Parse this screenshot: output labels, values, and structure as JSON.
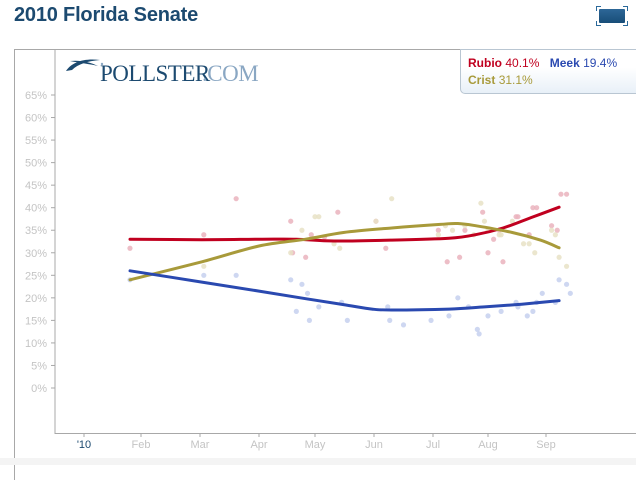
{
  "header": {
    "title": "2010 Florida Senate",
    "toggle_icon": "expand-icon"
  },
  "logo": {
    "text_main": "POLLSTER",
    "text_suffix": ".COM",
    "icon": "pollster-swoosh-icon"
  },
  "legend": {
    "entries": [
      {
        "name": "Rubio",
        "value": "40.1%",
        "color": "#c0001f"
      },
      {
        "name": "Meek",
        "value": "19.4%",
        "color": "#2a49b0"
      },
      {
        "name": "Crist",
        "value": "31.1%",
        "color": "#a89a3a"
      }
    ]
  },
  "chart_data": {
    "type": "line",
    "title": "2010 Florida Senate",
    "xlabel": "",
    "ylabel": "",
    "ylim": [
      0,
      65
    ],
    "yticks": [
      "65%",
      "60%",
      "55%",
      "50%",
      "45%",
      "40%",
      "35%",
      "30%",
      "25%",
      "20%",
      "15%",
      "10%",
      "5%",
      "0%"
    ],
    "ytick_values": [
      65,
      60,
      55,
      50,
      45,
      40,
      35,
      30,
      25,
      20,
      15,
      10,
      5,
      0
    ],
    "xticks": [
      {
        "label": "'10",
        "day": 0,
        "highlight": true
      },
      {
        "label": "Feb",
        "day": 31
      },
      {
        "label": "Mar",
        "day": 59
      },
      {
        "label": "Apr",
        "day": 90
      },
      {
        "label": "May",
        "day": 120
      },
      {
        "label": "Jun",
        "day": 151
      },
      {
        "label": "Jul",
        "day": 181
      },
      {
        "label": "Aug",
        "day": 212
      },
      {
        "label": "Sep",
        "day": 243
      }
    ],
    "x_unit": "day of year 2010",
    "xlim": [
      -16,
      285
    ],
    "grid": false,
    "legend_position": "top-right",
    "series": [
      {
        "name": "Rubio",
        "color": "#c0001f",
        "dot_color": "#eab3bd",
        "final_value": 40.1,
        "trend": [
          [
            25,
            33.0
          ],
          [
            60,
            32.9
          ],
          [
            90,
            33.0
          ],
          [
            110,
            33.0
          ],
          [
            130,
            32.6
          ],
          [
            160,
            32.8
          ],
          [
            190,
            33.2
          ],
          [
            205,
            34.0
          ],
          [
            220,
            35.5
          ],
          [
            235,
            37.8
          ],
          [
            250,
            40.1
          ]
        ],
        "polls": [
          [
            25,
            31
          ],
          [
            61,
            34
          ],
          [
            78,
            42
          ],
          [
            107,
            37
          ],
          [
            108,
            30
          ],
          [
            115,
            29
          ],
          [
            118,
            34
          ],
          [
            125,
            33.5
          ],
          [
            132,
            39
          ],
          [
            152,
            37
          ],
          [
            157,
            31
          ],
          [
            184,
            35
          ],
          [
            189,
            28
          ],
          [
            196,
            29
          ],
          [
            199,
            35
          ],
          [
            209,
            39
          ],
          [
            212,
            30
          ],
          [
            215,
            33
          ],
          [
            218,
            35
          ],
          [
            220,
            28
          ],
          [
            227,
            38
          ],
          [
            228,
            38
          ],
          [
            234,
            34
          ],
          [
            236,
            40
          ],
          [
            238,
            40
          ],
          [
            246,
            36
          ],
          [
            249,
            35
          ],
          [
            251,
            43
          ],
          [
            254,
            43
          ]
        ]
      },
      {
        "name": "Crist",
        "color": "#a89a3a",
        "dot_color": "#e7e2c6",
        "final_value": 31.1,
        "trend": [
          [
            25,
            24.0
          ],
          [
            60,
            28.0
          ],
          [
            90,
            31.5
          ],
          [
            115,
            33.0
          ],
          [
            135,
            34.5
          ],
          [
            160,
            35.5
          ],
          [
            185,
            36.3
          ],
          [
            195,
            36.5
          ],
          [
            205,
            36.0
          ],
          [
            225,
            34.5
          ],
          [
            240,
            32.8
          ],
          [
            250,
            31.1
          ]
        ],
        "polls": [
          [
            61,
            27
          ],
          [
            107,
            30
          ],
          [
            113,
            35
          ],
          [
            120,
            38
          ],
          [
            122,
            38
          ],
          [
            130,
            32
          ],
          [
            133,
            31
          ],
          [
            152,
            37
          ],
          [
            160,
            42
          ],
          [
            184,
            34
          ],
          [
            188,
            36
          ],
          [
            192,
            35
          ],
          [
            199,
            36
          ],
          [
            204,
            34
          ],
          [
            208,
            41
          ],
          [
            210,
            37
          ],
          [
            212,
            35
          ],
          [
            218,
            34
          ],
          [
            219,
            34
          ],
          [
            225,
            37
          ],
          [
            231,
            32
          ],
          [
            234,
            32
          ],
          [
            237,
            30
          ],
          [
            246,
            35
          ],
          [
            248,
            34
          ],
          [
            250,
            29
          ],
          [
            254,
            27
          ]
        ]
      },
      {
        "name": "Meek",
        "color": "#2a49b0",
        "dot_color": "#c6d0ee",
        "final_value": 19.4,
        "trend": [
          [
            25,
            26.0
          ],
          [
            60,
            23.5
          ],
          [
            90,
            21.5
          ],
          [
            115,
            19.8
          ],
          [
            135,
            18.5
          ],
          [
            150,
            17.5
          ],
          [
            160,
            17.3
          ],
          [
            190,
            17.5
          ],
          [
            210,
            18.0
          ],
          [
            230,
            18.6
          ],
          [
            250,
            19.4
          ]
        ],
        "polls": [
          [
            25,
            24
          ],
          [
            61,
            25
          ],
          [
            78,
            25
          ],
          [
            107,
            24
          ],
          [
            110,
            17
          ],
          [
            113,
            23
          ],
          [
            116,
            21
          ],
          [
            117,
            15
          ],
          [
            122,
            18
          ],
          [
            134,
            19
          ],
          [
            137,
            15
          ],
          [
            158,
            18
          ],
          [
            159,
            15
          ],
          [
            166,
            14
          ],
          [
            180,
            15
          ],
          [
            190,
            16
          ],
          [
            195,
            20
          ],
          [
            201,
            18
          ],
          [
            206,
            13
          ],
          [
            207,
            12
          ],
          [
            212,
            16
          ],
          [
            219,
            17
          ],
          [
            227,
            19
          ],
          [
            228,
            18
          ],
          [
            233,
            16
          ],
          [
            236,
            17
          ],
          [
            238,
            19
          ],
          [
            241,
            21
          ],
          [
            248,
            19
          ],
          [
            250,
            24
          ],
          [
            254,
            23
          ],
          [
            256,
            21
          ]
        ]
      }
    ]
  }
}
